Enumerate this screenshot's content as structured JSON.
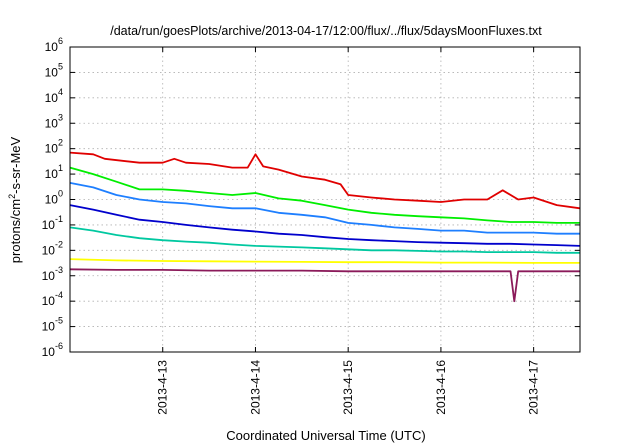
{
  "chart_data": {
    "type": "line",
    "title": "/data/run/goesPlots/archive/2013-04-17/12:00/flux/../flux/5daysMoonFluxes.txt",
    "xlabel": "Coordinated Universal Time (UTC)",
    "ylabel_parts": [
      "protons/cm",
      "2",
      "-s-sr-MeV"
    ],
    "y_scale": "log",
    "ylim": [
      1e-06,
      1000000.0
    ],
    "y_ticks": [
      {
        "value": 1e-06,
        "base": "10",
        "exp": "-6"
      },
      {
        "value": 1e-05,
        "base": "10",
        "exp": "-5"
      },
      {
        "value": 0.0001,
        "base": "10",
        "exp": "-4"
      },
      {
        "value": 0.001,
        "base": "10",
        "exp": "-3"
      },
      {
        "value": 0.01,
        "base": "10",
        "exp": "-2"
      },
      {
        "value": 0.1,
        "base": "10",
        "exp": "-1"
      },
      {
        "value": 1,
        "base": "10",
        "exp": "0"
      },
      {
        "value": 10.0,
        "base": "10",
        "exp": "1"
      },
      {
        "value": 100.0,
        "base": "10",
        "exp": "2"
      },
      {
        "value": 1000.0,
        "base": "10",
        "exp": "3"
      },
      {
        "value": 10000.0,
        "base": "10",
        "exp": "4"
      },
      {
        "value": 100000.0,
        "base": "10",
        "exp": "5"
      },
      {
        "value": 1000000.0,
        "base": "10",
        "exp": "6"
      }
    ],
    "xlim": [
      "2013-04-12 00:00",
      "2013-04-17 12:00"
    ],
    "x_ticks": [
      {
        "value": "2013-04-13 00:00",
        "label": "2013-4-13"
      },
      {
        "value": "2013-04-14 00:00",
        "label": "2013-4-14"
      },
      {
        "value": "2013-04-15 00:00",
        "label": "2013-4-15"
      },
      {
        "value": "2013-04-16 00:00",
        "label": "2013-4-16"
      },
      {
        "value": "2013-04-17 00:00",
        "label": "2013-4-17"
      }
    ],
    "grid": true,
    "series": [
      {
        "color": "#e00000",
        "points": [
          [
            "2013-04-12 00:00",
            70
          ],
          [
            "2013-04-12 06:00",
            60
          ],
          [
            "2013-04-12 09:00",
            40
          ],
          [
            "2013-04-12 18:00",
            28
          ],
          [
            "2013-04-13 00:00",
            28
          ],
          [
            "2013-04-13 03:00",
            40
          ],
          [
            "2013-04-13 06:00",
            28
          ],
          [
            "2013-04-13 12:00",
            25
          ],
          [
            "2013-04-13 18:00",
            18
          ],
          [
            "2013-04-13 22:00",
            18
          ],
          [
            "2013-04-14 00:00",
            60
          ],
          [
            "2013-04-14 02:00",
            20
          ],
          [
            "2013-04-14 06:00",
            15
          ],
          [
            "2013-04-14 12:00",
            8
          ],
          [
            "2013-04-14 18:00",
            6
          ],
          [
            "2013-04-14 22:00",
            4
          ],
          [
            "2013-04-15 00:00",
            1.5
          ],
          [
            "2013-04-15 06:00",
            1.2
          ],
          [
            "2013-04-15 12:00",
            1.0
          ],
          [
            "2013-04-15 18:00",
            0.9
          ],
          [
            "2013-04-16 00:00",
            0.8
          ],
          [
            "2013-04-16 06:00",
            1.0
          ],
          [
            "2013-04-16 12:00",
            1.0
          ],
          [
            "2013-04-16 16:00",
            2.3
          ],
          [
            "2013-04-16 20:00",
            1.0
          ],
          [
            "2013-04-17 00:00",
            1.2
          ],
          [
            "2013-04-17 06:00",
            0.6
          ],
          [
            "2013-04-17 12:00",
            0.45
          ]
        ]
      },
      {
        "color": "#00ee00",
        "points": [
          [
            "2013-04-12 00:00",
            18
          ],
          [
            "2013-04-12 06:00",
            10
          ],
          [
            "2013-04-12 12:00",
            5
          ],
          [
            "2013-04-12 18:00",
            2.5
          ],
          [
            "2013-04-13 00:00",
            2.5
          ],
          [
            "2013-04-13 06:00",
            2.2
          ],
          [
            "2013-04-13 12:00",
            1.8
          ],
          [
            "2013-04-13 18:00",
            1.5
          ],
          [
            "2013-04-14 00:00",
            1.8
          ],
          [
            "2013-04-14 06:00",
            1.1
          ],
          [
            "2013-04-14 12:00",
            0.9
          ],
          [
            "2013-04-14 18:00",
            0.6
          ],
          [
            "2013-04-15 00:00",
            0.4
          ],
          [
            "2013-04-15 06:00",
            0.3
          ],
          [
            "2013-04-15 12:00",
            0.25
          ],
          [
            "2013-04-15 18:00",
            0.22
          ],
          [
            "2013-04-16 00:00",
            0.2
          ],
          [
            "2013-04-16 06:00",
            0.18
          ],
          [
            "2013-04-16 12:00",
            0.15
          ],
          [
            "2013-04-16 18:00",
            0.13
          ],
          [
            "2013-04-17 00:00",
            0.13
          ],
          [
            "2013-04-17 06:00",
            0.12
          ],
          [
            "2013-04-17 12:00",
            0.12
          ]
        ]
      },
      {
        "color": "#1e7fff",
        "points": [
          [
            "2013-04-12 00:00",
            4.5
          ],
          [
            "2013-04-12 06:00",
            3
          ],
          [
            "2013-04-12 12:00",
            1.5
          ],
          [
            "2013-04-12 18:00",
            1.0
          ],
          [
            "2013-04-13 00:00",
            0.8
          ],
          [
            "2013-04-13 06:00",
            0.7
          ],
          [
            "2013-04-13 12:00",
            0.55
          ],
          [
            "2013-04-13 18:00",
            0.45
          ],
          [
            "2013-04-14 00:00",
            0.45
          ],
          [
            "2013-04-14 06:00",
            0.3
          ],
          [
            "2013-04-14 12:00",
            0.25
          ],
          [
            "2013-04-14 18:00",
            0.2
          ],
          [
            "2013-04-15 00:00",
            0.12
          ],
          [
            "2013-04-15 06:00",
            0.1
          ],
          [
            "2013-04-15 12:00",
            0.08
          ],
          [
            "2013-04-15 18:00",
            0.07
          ],
          [
            "2013-04-16 00:00",
            0.06
          ],
          [
            "2013-04-16 06:00",
            0.06
          ],
          [
            "2013-04-16 12:00",
            0.05
          ],
          [
            "2013-04-16 18:00",
            0.05
          ],
          [
            "2013-04-17 00:00",
            0.05
          ],
          [
            "2013-04-17 06:00",
            0.045
          ],
          [
            "2013-04-17 12:00",
            0.045
          ]
        ]
      },
      {
        "color": "#0000cc",
        "points": [
          [
            "2013-04-12 00:00",
            0.6
          ],
          [
            "2013-04-12 06:00",
            0.4
          ],
          [
            "2013-04-12 12:00",
            0.25
          ],
          [
            "2013-04-12 18:00",
            0.16
          ],
          [
            "2013-04-13 00:00",
            0.13
          ],
          [
            "2013-04-13 06:00",
            0.1
          ],
          [
            "2013-04-13 12:00",
            0.08
          ],
          [
            "2013-04-13 18:00",
            0.065
          ],
          [
            "2013-04-14 00:00",
            0.055
          ],
          [
            "2013-04-14 06:00",
            0.045
          ],
          [
            "2013-04-14 12:00",
            0.04
          ],
          [
            "2013-04-14 18:00",
            0.033
          ],
          [
            "2013-04-15 00:00",
            0.028
          ],
          [
            "2013-04-15 06:00",
            0.025
          ],
          [
            "2013-04-15 12:00",
            0.023
          ],
          [
            "2013-04-15 18:00",
            0.021
          ],
          [
            "2013-04-16 00:00",
            0.02
          ],
          [
            "2013-04-16 06:00",
            0.019
          ],
          [
            "2013-04-16 12:00",
            0.018
          ],
          [
            "2013-04-16 18:00",
            0.018
          ],
          [
            "2013-04-17 00:00",
            0.017
          ],
          [
            "2013-04-17 06:00",
            0.016
          ],
          [
            "2013-04-17 12:00",
            0.015
          ]
        ]
      },
      {
        "color": "#00c8a0",
        "points": [
          [
            "2013-04-12 00:00",
            0.08
          ],
          [
            "2013-04-12 06:00",
            0.06
          ],
          [
            "2013-04-12 12:00",
            0.04
          ],
          [
            "2013-04-12 18:00",
            0.03
          ],
          [
            "2013-04-13 00:00",
            0.025
          ],
          [
            "2013-04-13 06:00",
            0.022
          ],
          [
            "2013-04-13 12:00",
            0.02
          ],
          [
            "2013-04-13 18:00",
            0.017
          ],
          [
            "2013-04-14 00:00",
            0.015
          ],
          [
            "2013-04-14 06:00",
            0.014
          ],
          [
            "2013-04-14 12:00",
            0.013
          ],
          [
            "2013-04-14 18:00",
            0.012
          ],
          [
            "2013-04-15 00:00",
            0.011
          ],
          [
            "2013-04-15 06:00",
            0.01
          ],
          [
            "2013-04-15 12:00",
            0.01
          ],
          [
            "2013-04-15 18:00",
            0.0095
          ],
          [
            "2013-04-16 00:00",
            0.009
          ],
          [
            "2013-04-16 06:00",
            0.009
          ],
          [
            "2013-04-16 12:00",
            0.0085
          ],
          [
            "2013-04-16 18:00",
            0.0085
          ],
          [
            "2013-04-17 00:00",
            0.0085
          ],
          [
            "2013-04-17 06:00",
            0.008
          ],
          [
            "2013-04-17 12:00",
            0.008
          ]
        ]
      },
      {
        "color": "#ffff00",
        "points": [
          [
            "2013-04-12 00:00",
            0.0045
          ],
          [
            "2013-04-12 12:00",
            0.004
          ],
          [
            "2013-04-13 00:00",
            0.0038
          ],
          [
            "2013-04-13 12:00",
            0.0037
          ],
          [
            "2013-04-14 00:00",
            0.0036
          ],
          [
            "2013-04-14 12:00",
            0.0035
          ],
          [
            "2013-04-15 00:00",
            0.0034
          ],
          [
            "2013-04-15 12:00",
            0.0034
          ],
          [
            "2013-04-16 00:00",
            0.0033
          ],
          [
            "2013-04-16 12:00",
            0.0033
          ],
          [
            "2013-04-17 00:00",
            0.0032
          ],
          [
            "2013-04-17 12:00",
            0.0032
          ]
        ]
      },
      {
        "color": "#8b1a5a",
        "points": [
          [
            "2013-04-12 00:00",
            0.0018
          ],
          [
            "2013-04-12 12:00",
            0.0017
          ],
          [
            "2013-04-13 00:00",
            0.0017
          ],
          [
            "2013-04-13 12:00",
            0.0016
          ],
          [
            "2013-04-14 00:00",
            0.0016
          ],
          [
            "2013-04-14 12:00",
            0.0016
          ],
          [
            "2013-04-15 00:00",
            0.0015
          ],
          [
            "2013-04-15 12:00",
            0.0015
          ],
          [
            "2013-04-16 00:00",
            0.0015
          ],
          [
            "2013-04-16 12:00",
            0.0015
          ],
          [
            "2013-04-16 18:00",
            0.0015
          ],
          [
            "2013-04-16 19:00",
            0.0001
          ],
          [
            "2013-04-16 20:00",
            0.0015
          ],
          [
            "2013-04-17 00:00",
            0.0015
          ],
          [
            "2013-04-17 12:00",
            0.0015
          ]
        ]
      }
    ]
  }
}
